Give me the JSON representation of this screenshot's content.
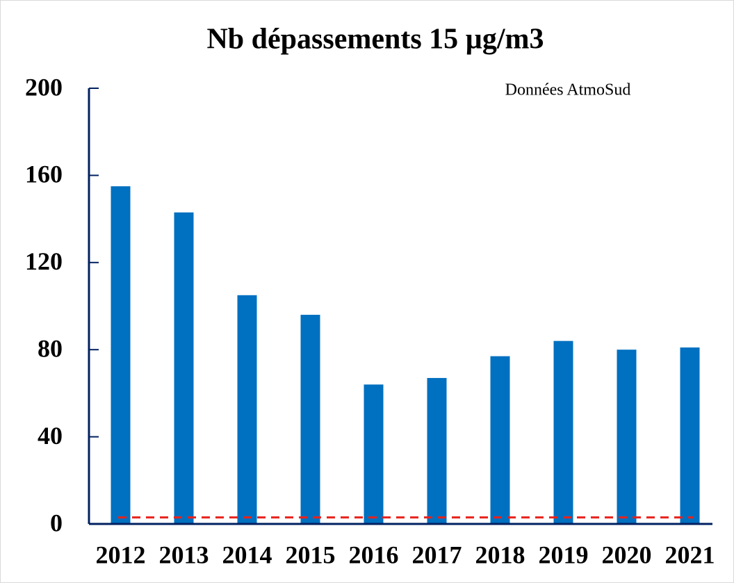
{
  "chart_data": {
    "type": "bar",
    "title": "Nb dépassements 15 µg/m3",
    "annotation": "Données AtmoSud",
    "categories": [
      "2012",
      "2013",
      "2014",
      "2015",
      "2016",
      "2017",
      "2018",
      "2019",
      "2020",
      "2021"
    ],
    "values": [
      155,
      143,
      105,
      96,
      64,
      67,
      77,
      84,
      80,
      81
    ],
    "color": "#0070c0",
    "reference_line": {
      "value": 3,
      "color": "#e8221c"
    },
    "ylim": [
      0,
      200
    ],
    "yticks": [
      0,
      40,
      80,
      120,
      160,
      200
    ],
    "grid": false
  }
}
